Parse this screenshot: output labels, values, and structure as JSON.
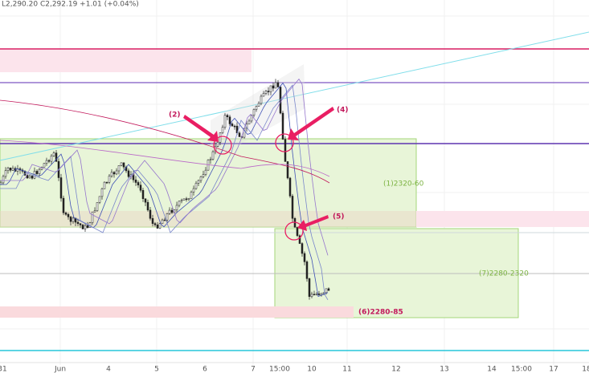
{
  "header": {
    "ohlc": "L2,290.20 C2,292.19 +1.01 (+0.04%)"
  },
  "annotations": {
    "a2": "(2)",
    "a4": "(4)",
    "a5": "(5)",
    "zone1": "(1)2320-60",
    "zone7": "(7)2280-2320",
    "zone6": "(6)2280-85"
  },
  "x_axis": {
    "labels": [
      "31",
      "Jun",
      "4",
      "5",
      "6",
      "7",
      "15:00",
      "10",
      "11",
      "12",
      "13",
      "14",
      "15:00",
      "17",
      "18"
    ]
  }
}
